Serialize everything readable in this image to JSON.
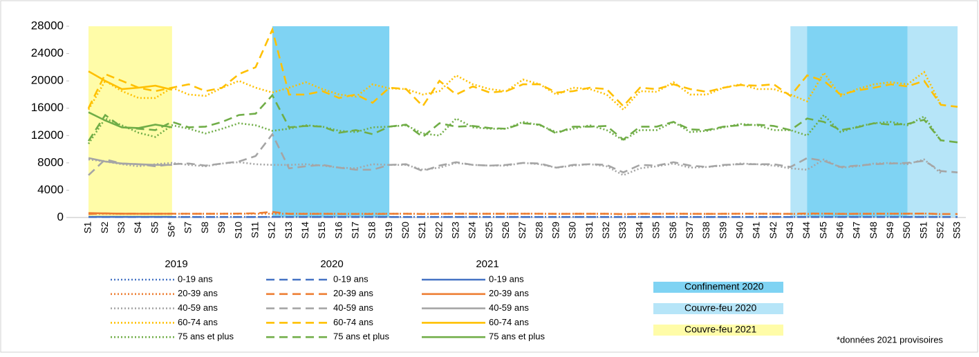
{
  "chart_data": {
    "type": "line",
    "categories": [
      "S1",
      "S2",
      "S3",
      "S4",
      "S5",
      "S6*",
      "S7",
      "S8",
      "S9",
      "S10",
      "S11",
      "S12",
      "S13",
      "S14",
      "S15",
      "S16",
      "S17",
      "S18",
      "S19",
      "S20",
      "S21",
      "S22",
      "S23",
      "S24",
      "S25",
      "S26",
      "S27",
      "S28",
      "S29",
      "S30",
      "S31",
      "S32",
      "S33",
      "S34",
      "S35",
      "S36",
      "S37",
      "S38",
      "S39",
      "S40",
      "S41",
      "S42",
      "S43",
      "S44",
      "S45",
      "S46",
      "S47",
      "S48",
      "S49",
      "S50",
      "S51",
      "S52",
      "S53"
    ],
    "ylim": [
      0,
      28000
    ],
    "yticks": [
      0,
      4000,
      8000,
      12000,
      16000,
      20000,
      24000,
      28000
    ],
    "shading": [
      {
        "name": "Confinement 2020",
        "color": "#7fd3f3",
        "ranges": [
          [
            "S12",
            "S19"
          ],
          [
            "S44",
            "S50"
          ]
        ]
      },
      {
        "name": "Couvre-feu 2020",
        "color": "#b6e5f8",
        "ranges": [
          [
            "S43",
            "S53"
          ]
        ]
      },
      {
        "name": "Couvre-feu 2021",
        "color": "#fffca8",
        "ranges": [
          [
            "S1",
            "S6*"
          ]
        ]
      }
    ],
    "series_groups": [
      {
        "title": "2019",
        "dash": "dotted",
        "series": [
          {
            "name": "0-19 ans",
            "color": "#4472c4",
            "values": [
              80,
              80,
              80,
              80,
              80,
              80,
              80,
              80,
              80,
              80,
              80,
              80,
              80,
              80,
              80,
              80,
              80,
              80,
              80,
              80,
              80,
              80,
              80,
              80,
              80,
              80,
              80,
              80,
              80,
              80,
              80,
              80,
              80,
              80,
              80,
              80,
              80,
              80,
              80,
              80,
              80,
              80,
              80,
              80,
              80,
              80,
              80,
              80,
              80,
              80,
              80,
              80,
              null
            ]
          },
          {
            "name": "20-39 ans",
            "color": "#ed7d31",
            "values": [
              560,
              560,
              550,
              550,
              550,
              560,
              550,
              550,
              560,
              570,
              560,
              560,
              560,
              560,
              550,
              550,
              540,
              560,
              560,
              560,
              540,
              550,
              570,
              560,
              550,
              550,
              570,
              560,
              540,
              550,
              560,
              550,
              500,
              540,
              550,
              570,
              540,
              540,
              550,
              560,
              560,
              550,
              540,
              530,
              580,
              540,
              550,
              560,
              570,
              560,
              590,
              500,
              null
            ]
          },
          {
            "name": "40-59 ans",
            "color": "#a5a5a5",
            "values": [
              8500,
              8200,
              7800,
              7500,
              7800,
              8000,
              7700,
              7500,
              7900,
              8100,
              7800,
              7700,
              7700,
              7800,
              7600,
              7300,
              7200,
              7800,
              7700,
              7700,
              7000,
              7300,
              8000,
              7700,
              7600,
              7600,
              8000,
              7800,
              7300,
              7600,
              7800,
              7500,
              6200,
              7200,
              7500,
              7900,
              7300,
              7400,
              7600,
              7900,
              7800,
              7600,
              7200,
              7000,
              8500,
              7300,
              7500,
              7900,
              8000,
              7800,
              8500,
              6500,
              null
            ]
          },
          {
            "name": "60-74 ans",
            "color": "#ffc000",
            "values": [
              15800,
              20000,
              18500,
              17500,
              17500,
              19000,
              18000,
              17800,
              19000,
              20000,
              19000,
              18300,
              19000,
              19800,
              18800,
              18000,
              17700,
              19500,
              18900,
              18800,
              18000,
              18500,
              20800,
              19500,
              18800,
              18500,
              20200,
              19500,
              18000,
              19000,
              18800,
              18000,
              15800,
              18500,
              18400,
              19800,
              18000,
              18000,
              19000,
              19500,
              18800,
              18800,
              18000,
              17000,
              21200,
              17800,
              18800,
              19500,
              19800,
              19500,
              21300,
              16500,
              null
            ]
          },
          {
            "name": "75 ans et plus",
            "color": "#70ad47",
            "values": [
              10800,
              14500,
              13500,
              12400,
              11800,
              13500,
              13000,
              12300,
              13000,
              13800,
              13500,
              12700,
              13000,
              13500,
              13300,
              12700,
              12500,
              13200,
              13300,
              13500,
              12300,
              12000,
              14500,
              13200,
              13000,
              13000,
              14000,
              13500,
              12500,
              13000,
              13500,
              12800,
              11300,
              12800,
              12800,
              14000,
              12500,
              12700,
              13200,
              13700,
              13500,
              12800,
              12800,
              12000,
              15000,
              12500,
              13300,
              13800,
              14000,
              13500,
              14800,
              11200,
              null
            ]
          }
        ]
      },
      {
        "title": "2020",
        "dash": "dashed",
        "series": [
          {
            "name": "0-19 ans",
            "color": "#4472c4",
            "values": [
              70,
              70,
              70,
              70,
              70,
              70,
              70,
              70,
              70,
              70,
              70,
              80,
              70,
              70,
              70,
              70,
              70,
              70,
              70,
              70,
              70,
              70,
              70,
              70,
              70,
              70,
              70,
              70,
              70,
              70,
              70,
              70,
              70,
              70,
              70,
              70,
              70,
              70,
              70,
              70,
              70,
              70,
              70,
              70,
              70,
              70,
              70,
              70,
              70,
              70,
              70,
              70,
              70
            ]
          },
          {
            "name": "20-39 ans",
            "color": "#ed7d31",
            "values": [
              520,
              600,
              570,
              560,
              550,
              560,
              560,
              550,
              560,
              580,
              620,
              820,
              540,
              540,
              550,
              530,
              530,
              520,
              550,
              560,
              520,
              550,
              560,
              550,
              550,
              550,
              560,
              560,
              540,
              550,
              550,
              550,
              500,
              550,
              550,
              560,
              550,
              540,
              550,
              560,
              560,
              560,
              540,
              590,
              580,
              540,
              550,
              560,
              560,
              570,
              580,
              520,
              510
            ]
          },
          {
            "name": "40-59 ans",
            "color": "#a5a5a5",
            "values": [
              6200,
              8500,
              7900,
              7800,
              7500,
              7800,
              7900,
              7600,
              7900,
              8200,
              9000,
              12200,
              7200,
              7500,
              7700,
              7300,
              7000,
              7000,
              7700,
              7800,
              6800,
              7600,
              8100,
              7700,
              7600,
              7700,
              8000,
              7900,
              7300,
              7700,
              7800,
              7700,
              6600,
              7700,
              7600,
              8100,
              7600,
              7400,
              7700,
              7800,
              7800,
              7800,
              7400,
              8700,
              8300,
              7400,
              7600,
              7800,
              7900,
              8000,
              8300,
              6800,
              6600
            ]
          },
          {
            "name": "60-74 ans",
            "color": "#ffc000",
            "values": [
              16000,
              21000,
              20000,
              19000,
              18500,
              19000,
              19500,
              18500,
              19000,
              21000,
              22000,
              27500,
              18000,
              18000,
              18500,
              17500,
              18000,
              16800,
              19000,
              18800,
              16300,
              20000,
              18000,
              19200,
              18300,
              18500,
              19500,
              19500,
              18300,
              18500,
              19000,
              18800,
              16300,
              19000,
              18800,
              19500,
              18800,
              18400,
              19000,
              19400,
              19300,
              19500,
              17800,
              20800,
              20000,
              18000,
              18600,
              19000,
              19500,
              19200,
              20000,
              16500,
              16200
            ]
          },
          {
            "name": "75 ans et plus",
            "color": "#70ad47",
            "values": [
              11200,
              15000,
              13200,
              13000,
              12800,
              14000,
              13200,
              13300,
              14000,
              15000,
              15200,
              17900,
              13200,
              13400,
              13300,
              12400,
              12800,
              12200,
              13300,
              13600,
              11800,
              13800,
              13300,
              13400,
              13100,
              13000,
              13800,
              13600,
              12300,
              13300,
              13300,
              13400,
              11400,
              13300,
              13300,
              14000,
              12900,
              12800,
              13300,
              13500,
              13600,
              13400,
              12800,
              14500,
              14000,
              12800,
              13200,
              13800,
              13600,
              13700,
              14300,
              11300,
              11000
            ]
          }
        ]
      },
      {
        "title": "2021",
        "dash": "solid",
        "series": [
          {
            "name": "0-19 ans",
            "color": "#4472c4",
            "values": [
              90,
              90,
              90,
              90,
              90,
              90,
              null,
              null,
              null,
              null,
              null,
              null,
              null,
              null,
              null,
              null,
              null,
              null,
              null,
              null,
              null,
              null,
              null,
              null,
              null,
              null,
              null,
              null,
              null,
              null,
              null,
              null,
              null,
              null,
              null,
              null,
              null,
              null,
              null,
              null,
              null,
              null,
              null,
              null,
              null,
              null,
              null,
              null,
              null,
              null,
              null,
              null,
              null
            ]
          },
          {
            "name": "20-39 ans",
            "color": "#ed7d31",
            "values": [
              650,
              600,
              570,
              560,
              560,
              560,
              null,
              null,
              null,
              null,
              null,
              null,
              null,
              null,
              null,
              null,
              null,
              null,
              null,
              null,
              null,
              null,
              null,
              null,
              null,
              null,
              null,
              null,
              null,
              null,
              null,
              null,
              null,
              null,
              null,
              null,
              null,
              null,
              null,
              null,
              null,
              null,
              null,
              null,
              null,
              null,
              null,
              null,
              null,
              null,
              null,
              null,
              null
            ]
          },
          {
            "name": "40-59 ans",
            "color": "#a5a5a5",
            "values": [
              8700,
              8200,
              7900,
              7800,
              7700,
              7700,
              null,
              null,
              null,
              null,
              null,
              null,
              null,
              null,
              null,
              null,
              null,
              null,
              null,
              null,
              null,
              null,
              null,
              null,
              null,
              null,
              null,
              null,
              null,
              null,
              null,
              null,
              null,
              null,
              null,
              null,
              null,
              null,
              null,
              null,
              null,
              null,
              null,
              null,
              null,
              null,
              null,
              null,
              null,
              null,
              null,
              null,
              null
            ]
          },
          {
            "name": "60-74 ans",
            "color": "#ffc000",
            "values": [
              21400,
              20000,
              18800,
              19000,
              19300,
              18700,
              null,
              null,
              null,
              null,
              null,
              null,
              null,
              null,
              null,
              null,
              null,
              null,
              null,
              null,
              null,
              null,
              null,
              null,
              null,
              null,
              null,
              null,
              null,
              null,
              null,
              null,
              null,
              null,
              null,
              null,
              null,
              null,
              null,
              null,
              null,
              null,
              null,
              null,
              null,
              null,
              null,
              null,
              null,
              null,
              null,
              null,
              null
            ]
          },
          {
            "name": "75 ans et plus",
            "color": "#70ad47",
            "values": [
              15400,
              14200,
              13200,
              13100,
              13600,
              13200,
              null,
              null,
              null,
              null,
              null,
              null,
              null,
              null,
              null,
              null,
              null,
              null,
              null,
              null,
              null,
              null,
              null,
              null,
              null,
              null,
              null,
              null,
              null,
              null,
              null,
              null,
              null,
              null,
              null,
              null,
              null,
              null,
              null,
              null,
              null,
              null,
              null,
              null,
              null,
              null,
              null,
              null,
              null,
              null,
              null,
              null,
              null
            ]
          }
        ]
      }
    ],
    "footnote": "*données 2021 provisoires"
  }
}
